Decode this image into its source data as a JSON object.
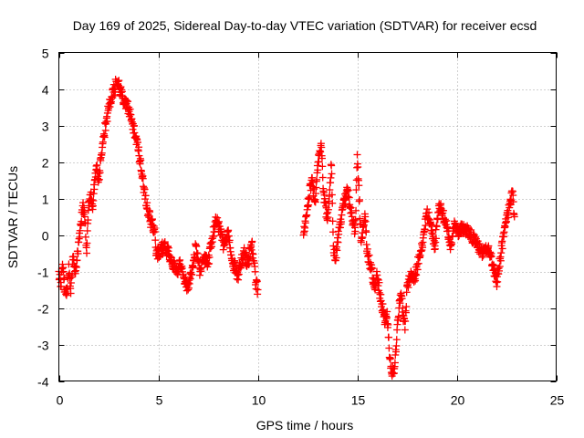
{
  "chart_data": {
    "type": "scatter",
    "title": "Day 169 of 2025, Sidereal Day-to-day VTEC variation (SDTVAR) for receiver ecsd",
    "xlabel": "GPS time / hours",
    "ylabel": "SDTVAR / TECUs",
    "xlim": [
      0,
      25
    ],
    "ylim": [
      -4,
      5
    ],
    "xticks": [
      0,
      5,
      10,
      15,
      20,
      25
    ],
    "yticks": [
      -4,
      -3,
      -2,
      -1,
      0,
      1,
      2,
      3,
      4,
      5
    ],
    "grid": true,
    "marker": "plus",
    "color": "#ff0000",
    "series": [
      {
        "name": "SDTVAR",
        "points": [
          [
            0.0,
            -1.0
          ],
          [
            0.1,
            -1.3
          ],
          [
            0.2,
            -0.9
          ],
          [
            0.3,
            -1.5
          ],
          [
            0.4,
            -1.6
          ],
          [
            0.5,
            -0.8
          ],
          [
            0.6,
            -1.6
          ],
          [
            0.7,
            -0.6
          ],
          [
            0.8,
            -1.0
          ],
          [
            0.9,
            -0.7
          ],
          [
            1.0,
            -0.2
          ],
          [
            1.1,
            0.3
          ],
          [
            1.2,
            0.8
          ],
          [
            1.3,
            0.5
          ],
          [
            1.4,
            -0.5
          ],
          [
            1.5,
            0.9
          ],
          [
            1.6,
            1.1
          ],
          [
            1.7,
            0.7
          ],
          [
            1.8,
            1.5
          ],
          [
            1.9,
            1.8
          ],
          [
            2.0,
            1.5
          ],
          [
            2.2,
            2.5
          ],
          [
            2.4,
            3.2
          ],
          [
            2.6,
            3.7
          ],
          [
            2.8,
            4.0
          ],
          [
            2.9,
            4.2
          ],
          [
            3.0,
            4.1
          ],
          [
            3.2,
            3.8
          ],
          [
            3.4,
            3.6
          ],
          [
            3.6,
            3.3
          ],
          [
            3.8,
            2.8
          ],
          [
            4.0,
            2.3
          ],
          [
            4.2,
            1.6
          ],
          [
            4.4,
            0.8
          ],
          [
            4.6,
            0.4
          ],
          [
            4.8,
            0.15
          ],
          [
            4.9,
            -0.5
          ],
          [
            5.0,
            -0.5
          ],
          [
            5.3,
            -0.3
          ],
          [
            5.6,
            -0.6
          ],
          [
            5.9,
            -1.0
          ],
          [
            6.1,
            -0.8
          ],
          [
            6.3,
            -1.2
          ],
          [
            6.5,
            -1.5
          ],
          [
            6.7,
            -0.9
          ],
          [
            6.9,
            -0.3
          ],
          [
            7.1,
            -1.0
          ],
          [
            7.3,
            -0.6
          ],
          [
            7.5,
            -0.8
          ],
          [
            7.7,
            -0.1
          ],
          [
            7.9,
            0.4
          ],
          [
            8.0,
            0.3
          ],
          [
            8.3,
            -0.3
          ],
          [
            8.5,
            0.1
          ],
          [
            8.7,
            -0.7
          ],
          [
            9.0,
            -1.1
          ],
          [
            9.3,
            -0.5
          ],
          [
            9.5,
            -0.8
          ],
          [
            9.7,
            -0.2
          ],
          [
            9.9,
            -1.3
          ],
          [
            10.0,
            -1.5
          ],
          [
            12.3,
            0.0
          ],
          [
            12.5,
            0.8
          ],
          [
            12.7,
            1.5
          ],
          [
            12.9,
            0.9
          ],
          [
            13.0,
            1.9
          ],
          [
            13.2,
            2.4
          ],
          [
            13.3,
            1.2
          ],
          [
            13.5,
            0.4
          ],
          [
            13.7,
            1.9
          ],
          [
            13.8,
            -0.3
          ],
          [
            13.9,
            -0.7
          ],
          [
            14.1,
            0.2
          ],
          [
            14.3,
            0.8
          ],
          [
            14.5,
            1.2
          ],
          [
            14.7,
            0.6
          ],
          [
            14.9,
            0.1
          ],
          [
            15.0,
            2.2
          ],
          [
            15.2,
            -0.2
          ],
          [
            15.4,
            0.5
          ],
          [
            15.5,
            -0.5
          ],
          [
            15.7,
            -0.9
          ],
          [
            15.9,
            -1.5
          ],
          [
            16.0,
            -1.1
          ],
          [
            16.2,
            -1.8
          ],
          [
            16.4,
            -2.4
          ],
          [
            16.5,
            -2.1
          ],
          [
            16.6,
            -3.1
          ],
          [
            16.7,
            -3.6
          ],
          [
            16.8,
            -3.8
          ],
          [
            16.9,
            -3.5
          ],
          [
            17.0,
            -2.6
          ],
          [
            17.1,
            -2.0
          ],
          [
            17.2,
            -1.6
          ],
          [
            17.3,
            -2.2
          ],
          [
            17.4,
            -2.6
          ],
          [
            17.5,
            -1.4
          ],
          [
            17.7,
            -1.0
          ],
          [
            17.9,
            -1.2
          ],
          [
            18.1,
            -0.6
          ],
          [
            18.3,
            -0.2
          ],
          [
            18.5,
            0.6
          ],
          [
            18.7,
            0.3
          ],
          [
            18.9,
            -0.3
          ],
          [
            19.1,
            0.8
          ],
          [
            19.3,
            0.6
          ],
          [
            19.5,
            0.2
          ],
          [
            19.7,
            -0.3
          ],
          [
            19.9,
            0.3
          ],
          [
            20.1,
            0.1
          ],
          [
            20.4,
            0.2
          ],
          [
            20.7,
            0.0
          ],
          [
            21.0,
            -0.2
          ],
          [
            21.3,
            -0.5
          ],
          [
            21.6,
            -0.3
          ],
          [
            21.8,
            -0.8
          ],
          [
            22.0,
            -1.3
          ],
          [
            22.2,
            -0.6
          ],
          [
            22.4,
            0.2
          ],
          [
            22.6,
            0.6
          ],
          [
            22.8,
            1.2
          ],
          [
            22.9,
            0.5
          ]
        ]
      }
    ]
  }
}
